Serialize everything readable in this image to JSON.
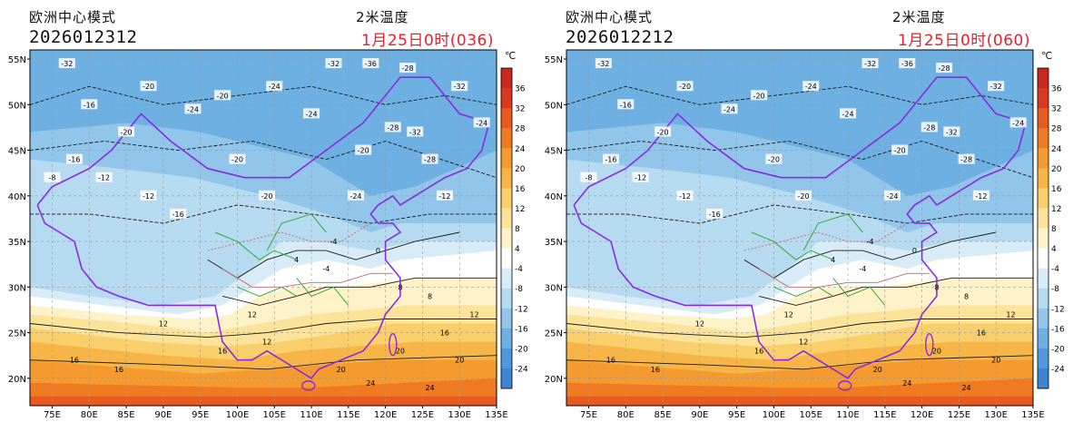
{
  "panels": [
    {
      "model_name": "欧洲中心模式",
      "run_time": "2026012312",
      "variable": "2米温度",
      "valid_time": "1月25日0时(036)"
    },
    {
      "model_name": "欧洲中心模式",
      "run_time": "2026012212",
      "variable": "2米温度",
      "valid_time": "1月25日0时(060)"
    }
  ],
  "colorbar": {
    "unit": "℃",
    "labels": [
      "36",
      "32",
      "28",
      "24",
      "20",
      "16",
      "12",
      "8",
      "4",
      "-4",
      "-8",
      "-12",
      "-16",
      "-20",
      "-24"
    ],
    "colors": [
      "#c8281e",
      "#d93a1f",
      "#e85a20",
      "#f07a22",
      "#f59a2e",
      "#f7b547",
      "#f9cf6c",
      "#fbe39a",
      "#fdf2c8",
      "#ffffff",
      "#d8ecf7",
      "#b6dbf1",
      "#91c5ea",
      "#6fb0e2",
      "#4f98da",
      "#3d84d2"
    ]
  },
  "axes": {
    "lat_labels": [
      "55N",
      "50N",
      "45N",
      "40N",
      "35N",
      "30N",
      "25N",
      "20N"
    ],
    "lon_labels": [
      "75E",
      "80E",
      "85E",
      "90E",
      "95E",
      "100E",
      "105E",
      "110E",
      "115E",
      "120E",
      "125E",
      "130E",
      "135E"
    ]
  },
  "contour_labels": {
    "north": [
      "-32",
      "-20",
      "-20",
      "-24",
      "-32",
      "-36",
      "-28",
      "-32",
      "-24",
      "-20",
      "-16",
      "-24",
      "-28",
      "-32",
      "-24",
      "-20",
      "-28",
      "-20",
      "-16",
      "-12",
      "-8",
      "-12",
      "-16",
      "-20",
      "-24",
      "-12"
    ],
    "south": [
      "-4",
      "4",
      "8",
      "12",
      "16",
      "20",
      "24",
      "0",
      "-4",
      "12",
      "16",
      "20",
      "8",
      "12",
      "16",
      "20",
      "24",
      "12",
      "16"
    ]
  },
  "legend_colors": {
    "coast_border": "#8a2be2",
    "province_border": "#33aa33",
    "river": "#c86464"
  }
}
